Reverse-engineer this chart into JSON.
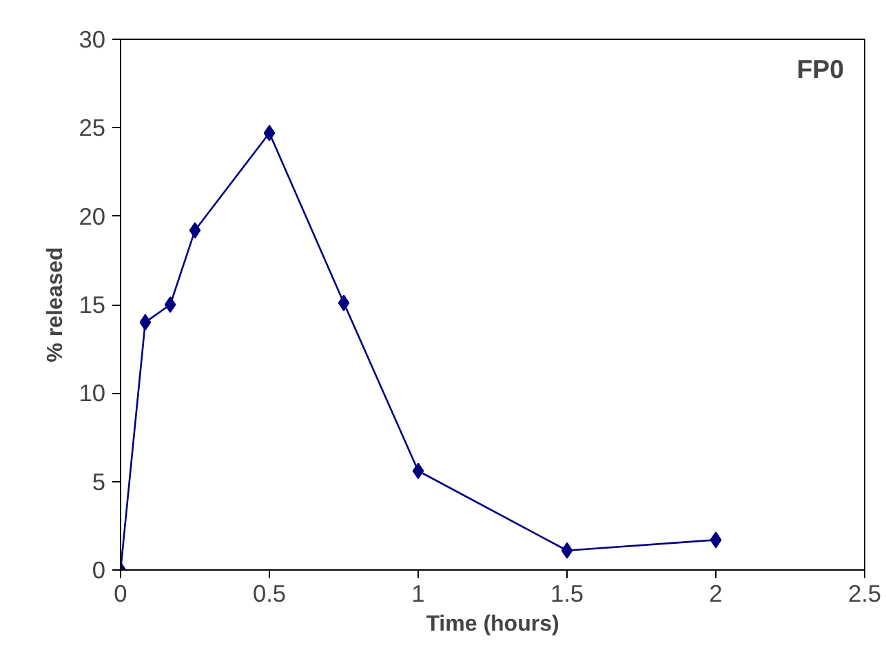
{
  "chart_data": {
    "type": "line",
    "xlabel": "Time (hours)",
    "ylabel": "% released",
    "annotations": [
      "FP0"
    ],
    "x": [
      0,
      0.083,
      0.167,
      0.25,
      0.5,
      0.75,
      1,
      1.5,
      2
    ],
    "series": [
      {
        "color": "#000080",
        "values": [
          0,
          14,
          15,
          19.2,
          24.7,
          15.1,
          5.6,
          1.1,
          1.7
        ]
      }
    ],
    "xlim": [
      0,
      2.5
    ],
    "xticks": [
      0,
      0.5,
      1,
      1.5,
      2,
      2.5
    ],
    "ylim": [
      0,
      30
    ],
    "yticks": [
      0,
      5,
      10,
      15,
      20,
      25,
      30
    ],
    "grid": false,
    "marker": "diamond",
    "line_style": "solid"
  }
}
